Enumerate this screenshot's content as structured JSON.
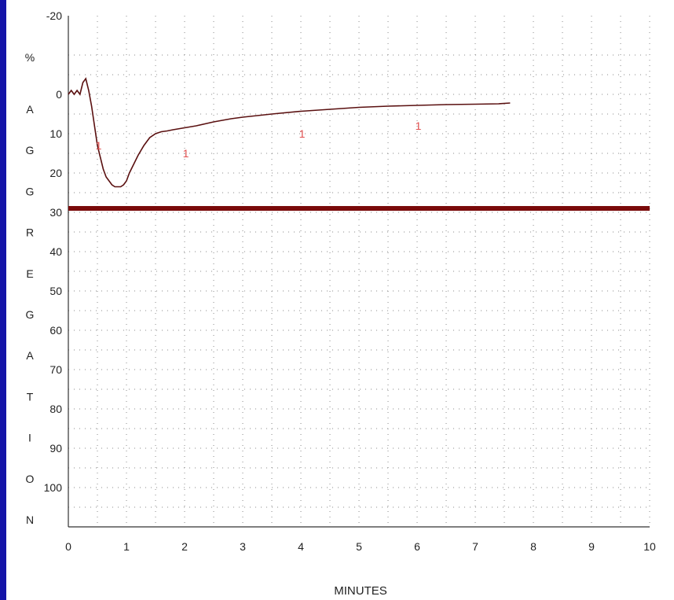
{
  "chart_data": {
    "type": "line",
    "title": "",
    "ylabel_top": "%",
    "ylabel_letters": [
      "A",
      "G",
      "G",
      "R",
      "E",
      "G",
      "A",
      "T",
      "I",
      "O",
      "N"
    ],
    "xlabel": "MINUTES",
    "xlim": [
      0,
      10
    ],
    "ylim": [
      -20,
      110
    ],
    "y_inverted": true,
    "grid": true,
    "x_ticks": [
      "0",
      "1",
      "2",
      "3",
      "4",
      "5",
      "6",
      "7",
      "8",
      "9",
      "10"
    ],
    "y_ticks": [
      "-20",
      "0",
      "10",
      "20",
      "30",
      "40",
      "50",
      "60",
      "70",
      "80",
      "90",
      "100"
    ],
    "y_tick_values": [
      -20,
      0,
      10,
      20,
      30,
      40,
      50,
      60,
      70,
      80,
      90,
      100
    ],
    "line_color": "#5a1010",
    "threshold": {
      "value": 29,
      "color": "#7a0a0a"
    },
    "annotations": [
      {
        "text": "1",
        "x": 0.52,
        "y": 13,
        "color": "#e05050"
      },
      {
        "text": "1",
        "x": 2.02,
        "y": 15,
        "color": "#e05050"
      },
      {
        "text": "1",
        "x": 4.02,
        "y": 10,
        "color": "#e05050"
      },
      {
        "text": "1",
        "x": 6.02,
        "y": 8,
        "color": "#e05050"
      }
    ],
    "series": [
      {
        "x": [
          0.0,
          0.05,
          0.1,
          0.15,
          0.2,
          0.25,
          0.3,
          0.35,
          0.4,
          0.45,
          0.5,
          0.55,
          0.6,
          0.65,
          0.7,
          0.75,
          0.8,
          0.85,
          0.9,
          0.95,
          1.0,
          1.05,
          1.1,
          1.2,
          1.3,
          1.4,
          1.5,
          1.6,
          1.7,
          1.8,
          2.0,
          2.2,
          2.5,
          2.8,
          3.0,
          3.5,
          4.0,
          4.5,
          5.0,
          5.5,
          6.0,
          6.5,
          7.0,
          7.4,
          7.6
        ],
        "y": [
          0,
          -1,
          0,
          -1,
          0,
          -3,
          -4,
          -1,
          3,
          8,
          13,
          16,
          19,
          21,
          22,
          23,
          23.5,
          23.5,
          23.5,
          23,
          22,
          20,
          18.5,
          15.5,
          13,
          11,
          10,
          9.5,
          9.3,
          9,
          8.5,
          8,
          7,
          6.2,
          5.8,
          5,
          4.3,
          3.8,
          3.3,
          3,
          2.8,
          2.6,
          2.5,
          2.4,
          2.2
        ]
      }
    ]
  }
}
